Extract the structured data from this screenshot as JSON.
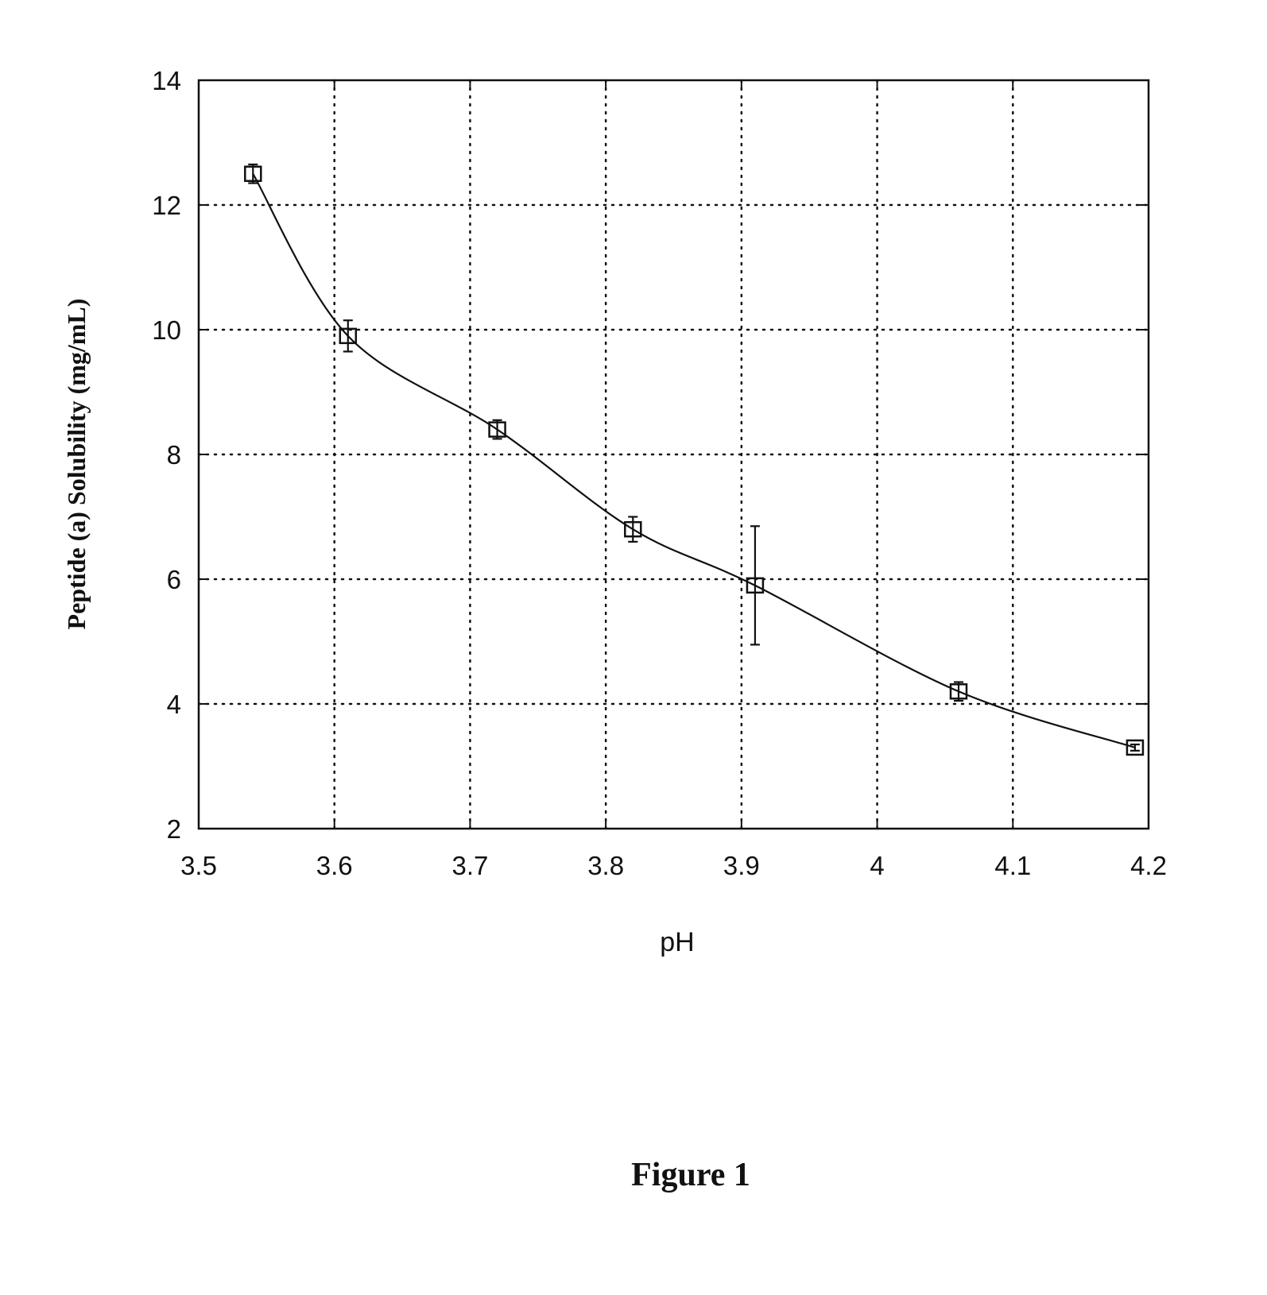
{
  "chart_data": {
    "type": "line",
    "xlabel": "pH",
    "ylabel": "Peptide (a) Solubility (mg/mL)",
    "xlim": [
      3.5,
      4.2
    ],
    "ylim": [
      2,
      14
    ],
    "x_ticks": [
      "3.5",
      "3.6",
      "3.7",
      "3.8",
      "3.9",
      "4",
      "4.1",
      "4.2"
    ],
    "y_ticks": [
      "2",
      "4",
      "6",
      "8",
      "10",
      "12",
      "14"
    ],
    "grid": true,
    "marker": "open-square",
    "series": [
      {
        "x": [
          3.54,
          3.61,
          3.72,
          3.82,
          3.91,
          4.06,
          4.19
        ],
        "y": [
          12.5,
          9.9,
          8.4,
          6.8,
          5.9,
          4.2,
          3.3
        ],
        "error": [
          0.15,
          0.25,
          0.15,
          0.2,
          0.95,
          0.15,
          0.05
        ]
      }
    ]
  },
  "caption": "Figure 1",
  "colors": {
    "ink": "#111111",
    "background": "#ffffff"
  }
}
